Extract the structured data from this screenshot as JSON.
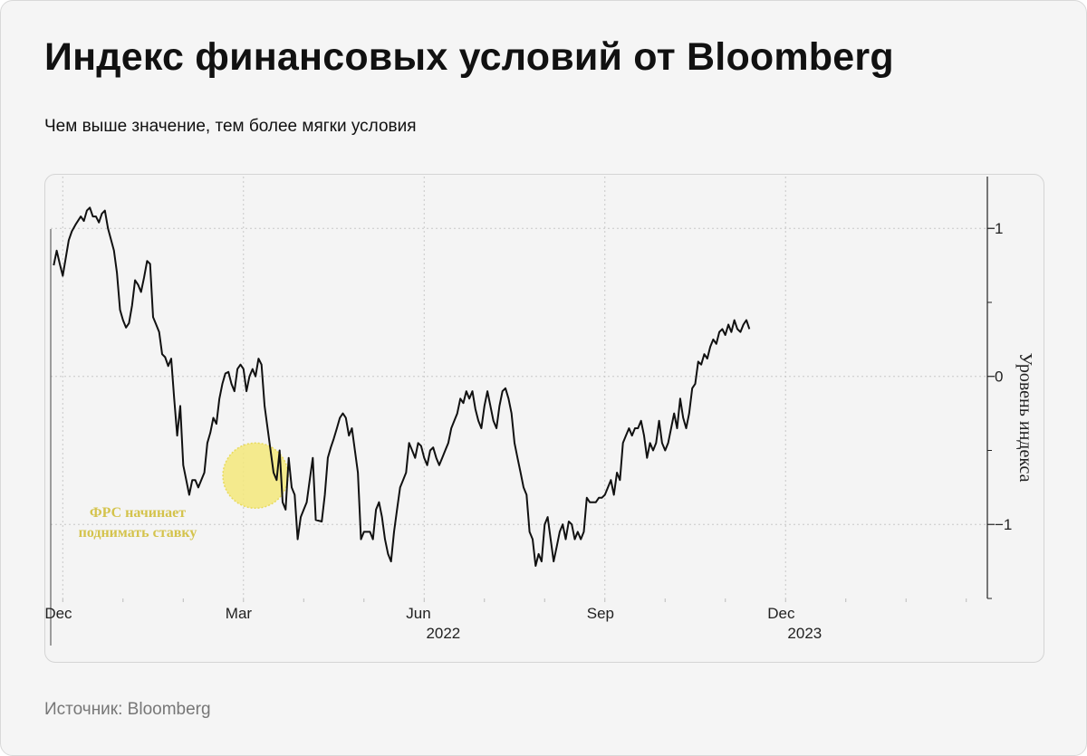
{
  "title": "Индекс финансовых условий от Bloomberg",
  "subtitle": "Чем выше значение, тем более мягки условия",
  "source": "Источник: Bloomberg",
  "colors": {
    "line": "#111111",
    "highlight_fill": "#f3e87a",
    "highlight_stroke": "#e8da5c",
    "annotation": "#d4c34c",
    "grid": "#c8c8c8"
  },
  "chart_data": {
    "type": "line",
    "title": "Индекс финансовых условий от Bloomberg",
    "xlabel": "",
    "ylabel": "Уровень индекса",
    "ylim": [
      -1.5,
      1.35
    ],
    "xlim": [
      -0.2,
      15.35
    ],
    "yticks": [
      -1,
      0,
      1
    ],
    "ytick_labels": [
      "−1",
      "0",
      "1"
    ],
    "xticks": [
      {
        "month": 0,
        "label": "Dec",
        "year": ""
      },
      {
        "month": 3,
        "label": "Mar",
        "year": ""
      },
      {
        "month": 6,
        "label": "Jun",
        "year": "2022"
      },
      {
        "month": 9,
        "label": "Sep",
        "year": ""
      },
      {
        "month": 12,
        "label": "Dec",
        "year": "2023"
      }
    ],
    "grid": true,
    "annotation": {
      "text": [
        "ФРС начинает",
        "поднимать ставку"
      ],
      "month": 3.2,
      "value": -0.67
    },
    "series": [
      {
        "points": [
          [
            -0.15,
            0.75
          ],
          [
            -0.1,
            0.85
          ],
          [
            -0.05,
            0.76
          ],
          [
            0.0,
            0.68
          ],
          [
            0.05,
            0.8
          ],
          [
            0.1,
            0.92
          ],
          [
            0.15,
            0.98
          ],
          [
            0.22,
            1.03
          ],
          [
            0.3,
            1.08
          ],
          [
            0.35,
            1.05
          ],
          [
            0.4,
            1.12
          ],
          [
            0.45,
            1.14
          ],
          [
            0.5,
            1.08
          ],
          [
            0.55,
            1.08
          ],
          [
            0.6,
            1.04
          ],
          [
            0.65,
            1.1
          ],
          [
            0.7,
            1.12
          ],
          [
            0.75,
            1.0
          ],
          [
            0.85,
            0.85
          ],
          [
            0.9,
            0.7
          ],
          [
            0.95,
            0.45
          ],
          [
            1.0,
            0.38
          ],
          [
            1.05,
            0.33
          ],
          [
            1.1,
            0.36
          ],
          [
            1.15,
            0.48
          ],
          [
            1.2,
            0.65
          ],
          [
            1.25,
            0.62
          ],
          [
            1.3,
            0.57
          ],
          [
            1.35,
            0.67
          ],
          [
            1.4,
            0.78
          ],
          [
            1.45,
            0.76
          ],
          [
            1.5,
            0.4
          ],
          [
            1.55,
            0.35
          ],
          [
            1.6,
            0.3
          ],
          [
            1.65,
            0.15
          ],
          [
            1.7,
            0.13
          ],
          [
            1.75,
            0.07
          ],
          [
            1.8,
            0.12
          ],
          [
            1.85,
            -0.15
          ],
          [
            1.9,
            -0.4
          ],
          [
            1.95,
            -0.2
          ],
          [
            2.0,
            -0.6
          ],
          [
            2.1,
            -0.8
          ],
          [
            2.15,
            -0.7
          ],
          [
            2.2,
            -0.7
          ],
          [
            2.25,
            -0.75
          ],
          [
            2.3,
            -0.7
          ],
          [
            2.35,
            -0.65
          ],
          [
            2.4,
            -0.45
          ],
          [
            2.45,
            -0.38
          ],
          [
            2.5,
            -0.28
          ],
          [
            2.55,
            -0.32
          ],
          [
            2.6,
            -0.15
          ],
          [
            2.65,
            -0.05
          ],
          [
            2.7,
            0.02
          ],
          [
            2.75,
            0.03
          ],
          [
            2.8,
            -0.05
          ],
          [
            2.85,
            -0.1
          ],
          [
            2.9,
            0.05
          ],
          [
            2.95,
            0.08
          ],
          [
            3.0,
            0.05
          ],
          [
            3.05,
            -0.1
          ],
          [
            3.1,
            0.0
          ],
          [
            3.15,
            0.05
          ],
          [
            3.2,
            0.0
          ],
          [
            3.25,
            0.12
          ],
          [
            3.3,
            0.08
          ],
          [
            3.35,
            -0.2
          ],
          [
            3.4,
            -0.35
          ],
          [
            3.45,
            -0.5
          ],
          [
            3.5,
            -0.65
          ],
          [
            3.55,
            -0.7
          ],
          [
            3.6,
            -0.5
          ],
          [
            3.65,
            -0.85
          ],
          [
            3.7,
            -0.9
          ],
          [
            3.75,
            -0.55
          ],
          [
            3.8,
            -0.75
          ],
          [
            3.85,
            -0.8
          ],
          [
            3.9,
            -1.1
          ],
          [
            3.95,
            -0.95
          ],
          [
            4.0,
            -0.9
          ],
          [
            4.05,
            -0.85
          ],
          [
            4.1,
            -0.7
          ],
          [
            4.15,
            -0.55
          ],
          [
            4.2,
            -0.97
          ],
          [
            4.3,
            -0.98
          ],
          [
            4.35,
            -0.8
          ],
          [
            4.4,
            -0.55
          ],
          [
            4.45,
            -0.48
          ],
          [
            4.5,
            -0.42
          ],
          [
            4.55,
            -0.35
          ],
          [
            4.6,
            -0.28
          ],
          [
            4.65,
            -0.25
          ],
          [
            4.7,
            -0.28
          ],
          [
            4.75,
            -0.4
          ],
          [
            4.8,
            -0.35
          ],
          [
            4.85,
            -0.5
          ],
          [
            4.9,
            -0.65
          ],
          [
            4.95,
            -1.1
          ],
          [
            5.0,
            -1.05
          ],
          [
            5.1,
            -1.05
          ],
          [
            5.15,
            -1.1
          ],
          [
            5.2,
            -0.9
          ],
          [
            5.25,
            -0.85
          ],
          [
            5.3,
            -0.95
          ],
          [
            5.35,
            -1.1
          ],
          [
            5.4,
            -1.2
          ],
          [
            5.45,
            -1.25
          ],
          [
            5.5,
            -1.05
          ],
          [
            5.55,
            -0.9
          ],
          [
            5.6,
            -0.75
          ],
          [
            5.65,
            -0.7
          ],
          [
            5.7,
            -0.65
          ],
          [
            5.75,
            -0.45
          ],
          [
            5.8,
            -0.5
          ],
          [
            5.85,
            -0.55
          ],
          [
            5.9,
            -0.45
          ],
          [
            5.95,
            -0.47
          ],
          [
            6.0,
            -0.55
          ],
          [
            6.05,
            -0.6
          ],
          [
            6.1,
            -0.5
          ],
          [
            6.15,
            -0.48
          ],
          [
            6.2,
            -0.55
          ],
          [
            6.25,
            -0.6
          ],
          [
            6.3,
            -0.55
          ],
          [
            6.35,
            -0.5
          ],
          [
            6.4,
            -0.45
          ],
          [
            6.45,
            -0.35
          ],
          [
            6.5,
            -0.3
          ],
          [
            6.55,
            -0.25
          ],
          [
            6.6,
            -0.15
          ],
          [
            6.65,
            -0.18
          ],
          [
            6.7,
            -0.1
          ],
          [
            6.75,
            -0.15
          ],
          [
            6.8,
            -0.1
          ],
          [
            6.85,
            -0.22
          ],
          [
            6.9,
            -0.3
          ],
          [
            6.95,
            -0.35
          ],
          [
            7.0,
            -0.2
          ],
          [
            7.05,
            -0.1
          ],
          [
            7.1,
            -0.2
          ],
          [
            7.15,
            -0.3
          ],
          [
            7.2,
            -0.35
          ],
          [
            7.25,
            -0.2
          ],
          [
            7.3,
            -0.1
          ],
          [
            7.35,
            -0.08
          ],
          [
            7.4,
            -0.15
          ],
          [
            7.45,
            -0.25
          ],
          [
            7.5,
            -0.45
          ],
          [
            7.55,
            -0.55
          ],
          [
            7.6,
            -0.65
          ],
          [
            7.65,
            -0.75
          ],
          [
            7.7,
            -0.8
          ],
          [
            7.75,
            -1.05
          ],
          [
            7.8,
            -1.1
          ],
          [
            7.85,
            -1.28
          ],
          [
            7.9,
            -1.2
          ],
          [
            7.95,
            -1.25
          ],
          [
            8.0,
            -1.0
          ],
          [
            8.05,
            -0.95
          ],
          [
            8.1,
            -1.1
          ],
          [
            8.15,
            -1.25
          ],
          [
            8.2,
            -1.15
          ],
          [
            8.25,
            -1.05
          ],
          [
            8.3,
            -1.0
          ],
          [
            8.35,
            -1.1
          ],
          [
            8.4,
            -0.98
          ],
          [
            8.45,
            -1.0
          ],
          [
            8.5,
            -1.1
          ],
          [
            8.55,
            -1.05
          ],
          [
            8.6,
            -1.1
          ],
          [
            8.65,
            -1.05
          ],
          [
            8.7,
            -0.82
          ],
          [
            8.75,
            -0.85
          ],
          [
            8.85,
            -0.85
          ],
          [
            8.9,
            -0.82
          ],
          [
            8.95,
            -0.82
          ],
          [
            9.0,
            -0.8
          ],
          [
            9.05,
            -0.75
          ],
          [
            9.1,
            -0.7
          ],
          [
            9.15,
            -0.8
          ],
          [
            9.2,
            -0.65
          ],
          [
            9.25,
            -0.7
          ],
          [
            9.3,
            -0.45
          ],
          [
            9.35,
            -0.4
          ],
          [
            9.4,
            -0.35
          ],
          [
            9.45,
            -0.4
          ],
          [
            9.5,
            -0.35
          ],
          [
            9.55,
            -0.35
          ],
          [
            9.6,
            -0.3
          ],
          [
            9.65,
            -0.4
          ],
          [
            9.7,
            -0.55
          ],
          [
            9.75,
            -0.45
          ],
          [
            9.8,
            -0.5
          ],
          [
            9.85,
            -0.45
          ],
          [
            9.9,
            -0.3
          ],
          [
            9.95,
            -0.45
          ],
          [
            10.0,
            -0.5
          ],
          [
            10.05,
            -0.45
          ],
          [
            10.1,
            -0.35
          ],
          [
            10.15,
            -0.25
          ],
          [
            10.2,
            -0.35
          ],
          [
            10.25,
            -0.15
          ],
          [
            10.3,
            -0.28
          ],
          [
            10.35,
            -0.35
          ],
          [
            10.4,
            -0.25
          ],
          [
            10.45,
            -0.08
          ],
          [
            10.5,
            -0.05
          ],
          [
            10.55,
            0.1
          ],
          [
            10.6,
            0.08
          ],
          [
            10.65,
            0.15
          ],
          [
            10.7,
            0.12
          ],
          [
            10.75,
            0.2
          ],
          [
            10.8,
            0.25
          ],
          [
            10.85,
            0.22
          ],
          [
            10.9,
            0.3
          ],
          [
            10.95,
            0.32
          ],
          [
            11.0,
            0.28
          ],
          [
            11.05,
            0.35
          ],
          [
            11.1,
            0.3
          ],
          [
            11.15,
            0.38
          ],
          [
            11.2,
            0.32
          ],
          [
            11.25,
            0.3
          ],
          [
            11.3,
            0.35
          ],
          [
            11.35,
            0.38
          ],
          [
            11.4,
            0.32
          ]
        ]
      }
    ]
  }
}
